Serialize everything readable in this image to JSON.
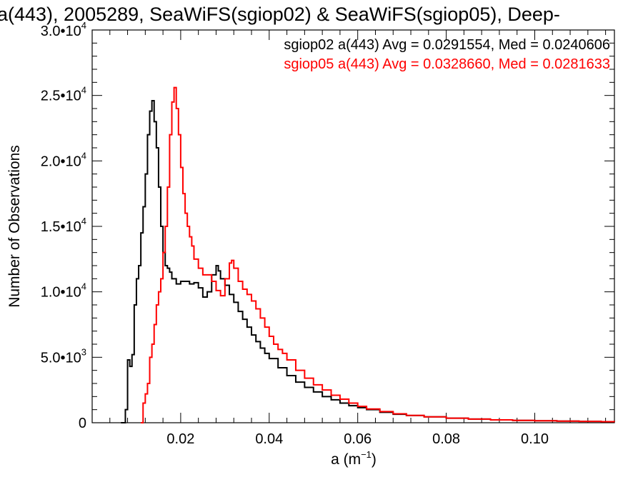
{
  "chart_data": {
    "type": "line",
    "title": "a(443), 2005289, SeaWiFS(sgiop02) & SeaWiFS(sgiop05), Deep-",
    "xlabel": "a (m",
    "xlabel_sup": "−1",
    "xlabel_tail": ")",
    "ylabel": "Number of Observations",
    "xlim": [
      0.0,
      0.118
    ],
    "ylim": [
      0,
      30000
    ],
    "grid": false,
    "x_ticks": [
      {
        "value": 0.02,
        "label": "0.02"
      },
      {
        "value": 0.04,
        "label": "0.04"
      },
      {
        "value": 0.06,
        "label": "0.06"
      },
      {
        "value": 0.08,
        "label": "0.08"
      },
      {
        "value": 0.1,
        "label": "0.10"
      }
    ],
    "y_ticks": [
      {
        "value": 0,
        "base": "0",
        "sup": ""
      },
      {
        "value": 5000,
        "base": "5.0•10",
        "sup": "3"
      },
      {
        "value": 10000,
        "base": "1.0•10",
        "sup": "4"
      },
      {
        "value": 15000,
        "base": "1.5•10",
        "sup": "4"
      },
      {
        "value": 20000,
        "base": "2.0•10",
        "sup": "4"
      },
      {
        "value": 25000,
        "base": "2.5•10",
        "sup": "4"
      },
      {
        "value": 30000,
        "base": "3.0•10",
        "sup": "4"
      }
    ],
    "annotations": [
      {
        "text": "sgiop02 a(443) Avg = 0.0291554, Med = 0.0240606",
        "color": "#000000"
      },
      {
        "text": "sgiop05 a(443) Avg = 0.0328660, Med = 0.0281633",
        "color": "#ff0000"
      }
    ],
    "series": [
      {
        "color": "#000000",
        "points": [
          [
            0.0065,
            0
          ],
          [
            0.007,
            0
          ],
          [
            0.0075,
            1000
          ],
          [
            0.008,
            4800
          ],
          [
            0.0085,
            4300
          ],
          [
            0.009,
            5200
          ],
          [
            0.0095,
            9000
          ],
          [
            0.01,
            11000
          ],
          [
            0.0105,
            12000
          ],
          [
            0.011,
            14500
          ],
          [
            0.0115,
            16500
          ],
          [
            0.012,
            19000
          ],
          [
            0.0125,
            22000
          ],
          [
            0.013,
            23800
          ],
          [
            0.0135,
            24600
          ],
          [
            0.014,
            23000
          ],
          [
            0.0145,
            21000
          ],
          [
            0.015,
            18000
          ],
          [
            0.0155,
            15000
          ],
          [
            0.016,
            13000
          ],
          [
            0.0165,
            12000
          ],
          [
            0.017,
            11800
          ],
          [
            0.0175,
            11500
          ],
          [
            0.018,
            11000
          ],
          [
            0.019,
            10600
          ],
          [
            0.02,
            10800
          ],
          [
            0.021,
            10800
          ],
          [
            0.022,
            10600
          ],
          [
            0.023,
            10700
          ],
          [
            0.024,
            10300
          ],
          [
            0.025,
            9600
          ],
          [
            0.026,
            10000
          ],
          [
            0.027,
            11300
          ],
          [
            0.028,
            12000
          ],
          [
            0.0285,
            11600
          ],
          [
            0.029,
            11000
          ],
          [
            0.03,
            10500
          ],
          [
            0.031,
            9800
          ],
          [
            0.032,
            9200
          ],
          [
            0.033,
            8500
          ],
          [
            0.034,
            7900
          ],
          [
            0.035,
            7300
          ],
          [
            0.036,
            6700
          ],
          [
            0.037,
            6200
          ],
          [
            0.038,
            5700
          ],
          [
            0.039,
            5300
          ],
          [
            0.04,
            4900
          ],
          [
            0.042,
            4200
          ],
          [
            0.044,
            3600
          ],
          [
            0.046,
            3100
          ],
          [
            0.048,
            2700
          ],
          [
            0.05,
            2350
          ],
          [
            0.052,
            2000
          ],
          [
            0.054,
            1750
          ],
          [
            0.056,
            1500
          ],
          [
            0.058,
            1300
          ],
          [
            0.06,
            1150
          ],
          [
            0.062,
            1000
          ],
          [
            0.065,
            800
          ],
          [
            0.068,
            650
          ],
          [
            0.071,
            550
          ],
          [
            0.075,
            450
          ],
          [
            0.08,
            350
          ],
          [
            0.085,
            280
          ],
          [
            0.09,
            220
          ],
          [
            0.095,
            180
          ],
          [
            0.1,
            150
          ],
          [
            0.105,
            120
          ],
          [
            0.11,
            100
          ],
          [
            0.115,
            80
          ],
          [
            0.118,
            70
          ]
        ]
      },
      {
        "color": "#ff0000",
        "points": [
          [
            0.011,
            0
          ],
          [
            0.0115,
            1500
          ],
          [
            0.012,
            2200
          ],
          [
            0.0125,
            3000
          ],
          [
            0.013,
            5000
          ],
          [
            0.0135,
            6000
          ],
          [
            0.014,
            7500
          ],
          [
            0.0145,
            9000
          ],
          [
            0.015,
            10000
          ],
          [
            0.0155,
            11000
          ],
          [
            0.016,
            13000
          ],
          [
            0.0165,
            15000
          ],
          [
            0.017,
            18000
          ],
          [
            0.0175,
            22000
          ],
          [
            0.018,
            24500
          ],
          [
            0.0185,
            25600
          ],
          [
            0.019,
            24000
          ],
          [
            0.0195,
            22000
          ],
          [
            0.02,
            19500
          ],
          [
            0.0205,
            17500
          ],
          [
            0.021,
            16000
          ],
          [
            0.0215,
            15000
          ],
          [
            0.022,
            14200
          ],
          [
            0.0225,
            13500
          ],
          [
            0.023,
            12500
          ],
          [
            0.024,
            11800
          ],
          [
            0.025,
            11300
          ],
          [
            0.026,
            11300
          ],
          [
            0.027,
            10800
          ],
          [
            0.028,
            10100
          ],
          [
            0.029,
            9700
          ],
          [
            0.03,
            11000
          ],
          [
            0.031,
            12200
          ],
          [
            0.0315,
            12400
          ],
          [
            0.032,
            11800
          ],
          [
            0.033,
            10800
          ],
          [
            0.034,
            10200
          ],
          [
            0.035,
            9800
          ],
          [
            0.036,
            9300
          ],
          [
            0.037,
            8700
          ],
          [
            0.038,
            8000
          ],
          [
            0.039,
            7300
          ],
          [
            0.04,
            6600
          ],
          [
            0.041,
            6000
          ],
          [
            0.042,
            5600
          ],
          [
            0.043,
            5300
          ],
          [
            0.044,
            4800
          ],
          [
            0.046,
            4000
          ],
          [
            0.048,
            3400
          ],
          [
            0.05,
            2900
          ],
          [
            0.052,
            2500
          ],
          [
            0.054,
            2100
          ],
          [
            0.056,
            1800
          ],
          [
            0.058,
            1500
          ],
          [
            0.06,
            1250
          ],
          [
            0.062,
            1050
          ],
          [
            0.065,
            850
          ],
          [
            0.068,
            680
          ],
          [
            0.071,
            560
          ],
          [
            0.075,
            450
          ],
          [
            0.08,
            350
          ],
          [
            0.085,
            280
          ],
          [
            0.09,
            220
          ],
          [
            0.095,
            180
          ],
          [
            0.1,
            150
          ],
          [
            0.105,
            120
          ],
          [
            0.11,
            100
          ],
          [
            0.115,
            80
          ],
          [
            0.118,
            70
          ]
        ]
      }
    ]
  }
}
